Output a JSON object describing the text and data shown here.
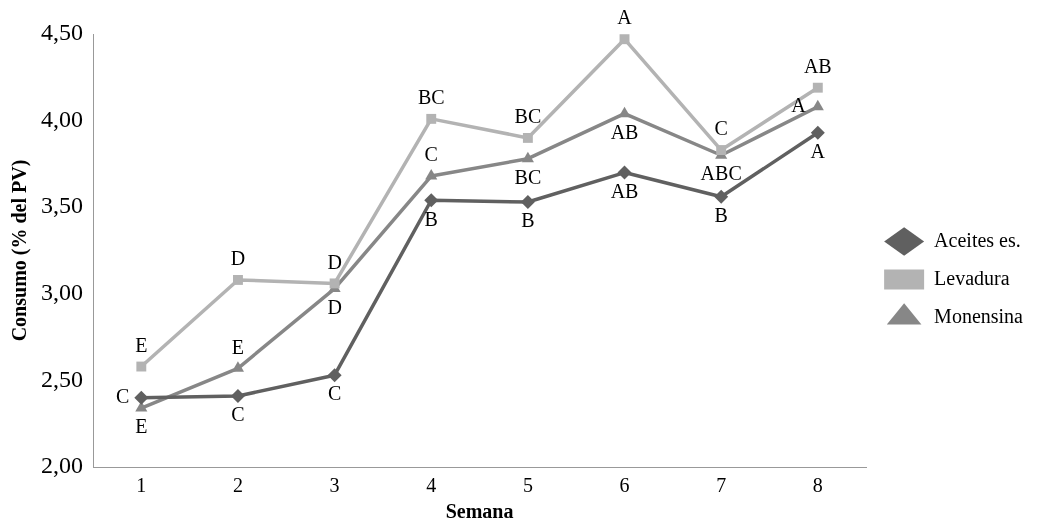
{
  "chart_data": {
    "type": "line",
    "xlabel": "Semana",
    "ylabel": "Consumo (% del PV)",
    "categories": [
      "1",
      "2",
      "3",
      "4",
      "5",
      "6",
      "7",
      "8"
    ],
    "series": [
      {
        "name": "Aceites es.",
        "color": "#606060",
        "marker": "diamond",
        "values": [
          2.4,
          2.41,
          2.53,
          3.54,
          3.53,
          3.7,
          3.56,
          3.93
        ]
      },
      {
        "name": "Levadura",
        "color": "#b3b3b3",
        "marker": "square",
        "values": [
          2.58,
          3.08,
          3.06,
          4.01,
          3.9,
          4.47,
          3.83,
          4.19
        ]
      },
      {
        "name": "Monensina",
        "color": "#878787",
        "marker": "triangle",
        "values": [
          2.34,
          2.57,
          3.03,
          3.68,
          3.78,
          4.04,
          3.8,
          4.08
        ]
      }
    ],
    "ylim": [
      2,
      4.5
    ],
    "yticks": [
      {
        "value": 2,
        "label": "2,00"
      },
      {
        "value": 2.5,
        "label": "2,50"
      },
      {
        "value": 3,
        "label": "3,00"
      },
      {
        "value": 3.5,
        "label": "3,50"
      },
      {
        "value": 4,
        "label": "4,00"
      },
      {
        "value": 4.5,
        "label": "4,50"
      }
    ],
    "grid": false,
    "legend": "right",
    "line_style": "solid",
    "annotations": [
      {
        "text": "C",
        "x": "1",
        "y": 2.4
      },
      {
        "text": "E",
        "x": "1",
        "y": 2.58
      },
      {
        "text": "E",
        "x": "1",
        "y": 2.34
      },
      {
        "text": "C",
        "x": "2",
        "y": 2.41
      },
      {
        "text": "D",
        "x": "2",
        "y": 3.08
      },
      {
        "text": "E",
        "x": "2",
        "y": 2.57
      },
      {
        "text": "C",
        "x": "3",
        "y": 2.53
      },
      {
        "text": "D",
        "x": "3",
        "y": 3.06
      },
      {
        "text": "D",
        "x": "3",
        "y": 3.03
      },
      {
        "text": "B",
        "x": "4",
        "y": 3.54
      },
      {
        "text": "BC",
        "x": "4",
        "y": 4.01
      },
      {
        "text": "C",
        "x": "4",
        "y": 3.68
      },
      {
        "text": "B",
        "x": "5",
        "y": 3.53
      },
      {
        "text": "BC",
        "x": "5",
        "y": 3.9
      },
      {
        "text": "BC",
        "x": "5",
        "y": 3.78
      },
      {
        "text": "AB",
        "x": "6",
        "y": 3.7
      },
      {
        "text": "A",
        "x": "6",
        "y": 4.47
      },
      {
        "text": "AB",
        "x": "6",
        "y": 4.04
      },
      {
        "text": "B",
        "x": "7",
        "y": 3.56
      },
      {
        "text": "C",
        "x": "7",
        "y": 3.83
      },
      {
        "text": "ABC",
        "x": "7",
        "y": 3.8
      },
      {
        "text": "A",
        "x": "8",
        "y": 3.93
      },
      {
        "text": "AB",
        "x": "8",
        "y": 4.19
      },
      {
        "text": "A",
        "x": "8",
        "y": 4.08
      }
    ]
  }
}
